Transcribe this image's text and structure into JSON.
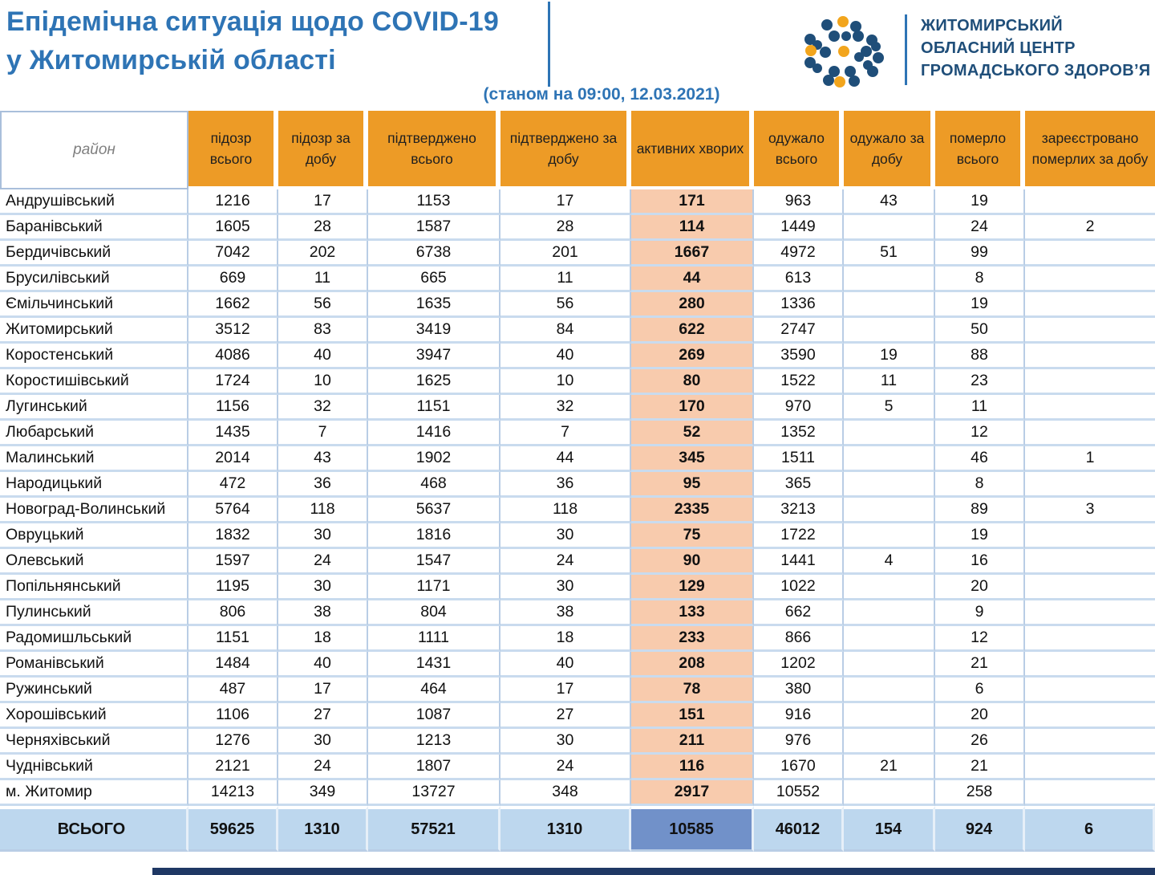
{
  "header": {
    "title_line1": "Епідемічна ситуація щодо COVID-19",
    "title_line2": "у Житомирській області",
    "subtitle": "(станом на 09:00, 12.03.2021)",
    "org_line1": "ЖИТОМИРСЬКИЙ",
    "org_line2": "ОБЛАСНИЙ ЦЕНТР",
    "org_line3": "ГРОМАДСЬКОГО ЗДОРОВ’Я"
  },
  "table": {
    "columns": [
      "район",
      "підозр всього",
      "підозр за добу",
      "підтверджено всього",
      "підтверджено за добу",
      "активних хворих",
      "одужало всього",
      "одужало за добу",
      "померло всього",
      "зареєстровано померлих за добу"
    ],
    "rows": [
      [
        "Андрушівський",
        "1216",
        "17",
        "1153",
        "17",
        "171",
        "963",
        "43",
        "19",
        ""
      ],
      [
        "Баранівський",
        "1605",
        "28",
        "1587",
        "28",
        "114",
        "1449",
        "",
        "24",
        "2"
      ],
      [
        "Бердичівський",
        "7042",
        "202",
        "6738",
        "201",
        "1667",
        "4972",
        "51",
        "99",
        ""
      ],
      [
        "Брусилівський",
        "669",
        "11",
        "665",
        "11",
        "44",
        "613",
        "",
        "8",
        ""
      ],
      [
        "Ємільчинський",
        "1662",
        "56",
        "1635",
        "56",
        "280",
        "1336",
        "",
        "19",
        ""
      ],
      [
        "Житомирський",
        "3512",
        "83",
        "3419",
        "84",
        "622",
        "2747",
        "",
        "50",
        ""
      ],
      [
        "Коростенський",
        "4086",
        "40",
        "3947",
        "40",
        "269",
        "3590",
        "19",
        "88",
        ""
      ],
      [
        "Коростишівський",
        "1724",
        "10",
        "1625",
        "10",
        "80",
        "1522",
        "11",
        "23",
        ""
      ],
      [
        "Лугинський",
        "1156",
        "32",
        "1151",
        "32",
        "170",
        "970",
        "5",
        "11",
        ""
      ],
      [
        "Любарський",
        "1435",
        "7",
        "1416",
        "7",
        "52",
        "1352",
        "",
        "12",
        ""
      ],
      [
        "Малинський",
        "2014",
        "43",
        "1902",
        "44",
        "345",
        "1511",
        "",
        "46",
        "1"
      ],
      [
        "Народицький",
        "472",
        "36",
        "468",
        "36",
        "95",
        "365",
        "",
        "8",
        ""
      ],
      [
        "Новоград-Волинський",
        "5764",
        "118",
        "5637",
        "118",
        "2335",
        "3213",
        "",
        "89",
        "3"
      ],
      [
        "Овруцький",
        "1832",
        "30",
        "1816",
        "30",
        "75",
        "1722",
        "",
        "19",
        ""
      ],
      [
        "Олевський",
        "1597",
        "24",
        "1547",
        "24",
        "90",
        "1441",
        "4",
        "16",
        ""
      ],
      [
        "Попільнянський",
        "1195",
        "30",
        "1171",
        "30",
        "129",
        "1022",
        "",
        "20",
        ""
      ],
      [
        "Пулинський",
        "806",
        "38",
        "804",
        "38",
        "133",
        "662",
        "",
        "9",
        ""
      ],
      [
        "Радомишльський",
        "1151",
        "18",
        "1111",
        "18",
        "233",
        "866",
        "",
        "12",
        ""
      ],
      [
        "Романівський",
        "1484",
        "40",
        "1431",
        "40",
        "208",
        "1202",
        "",
        "21",
        ""
      ],
      [
        "Ружинський",
        "487",
        "17",
        "464",
        "17",
        "78",
        "380",
        "",
        "6",
        ""
      ],
      [
        "Хорошівський",
        "1106",
        "27",
        "1087",
        "27",
        "151",
        "916",
        "",
        "20",
        ""
      ],
      [
        "Черняхівський",
        "1276",
        "30",
        "1213",
        "30",
        "211",
        "976",
        "",
        "26",
        ""
      ],
      [
        "Чуднівський",
        "2121",
        "24",
        "1807",
        "24",
        "116",
        "1670",
        "21",
        "21",
        ""
      ],
      [
        "м. Житомир",
        "14213",
        "349",
        "13727",
        "348",
        "2917",
        "10552",
        "",
        "258",
        ""
      ]
    ],
    "total": [
      "ВСЬОГО",
      "59625",
      "1310",
      "57521",
      "1310",
      "10585",
      "46012",
      "154",
      "924",
      "6"
    ]
  },
  "colors": {
    "title_blue": "#2E74B5",
    "org_navy": "#1F4E79",
    "header_orange": "#ED9B26",
    "active_peach": "#F8CBAD",
    "total_blue": "#BDD7EE",
    "total_active_blue": "#7191C9",
    "grid_line": "#B9CDE5",
    "row_line": "#C9DBEE",
    "footer_navy": "#1F3864",
    "logo_blue": "#1F4E79",
    "logo_orange": "#F2A51D"
  }
}
